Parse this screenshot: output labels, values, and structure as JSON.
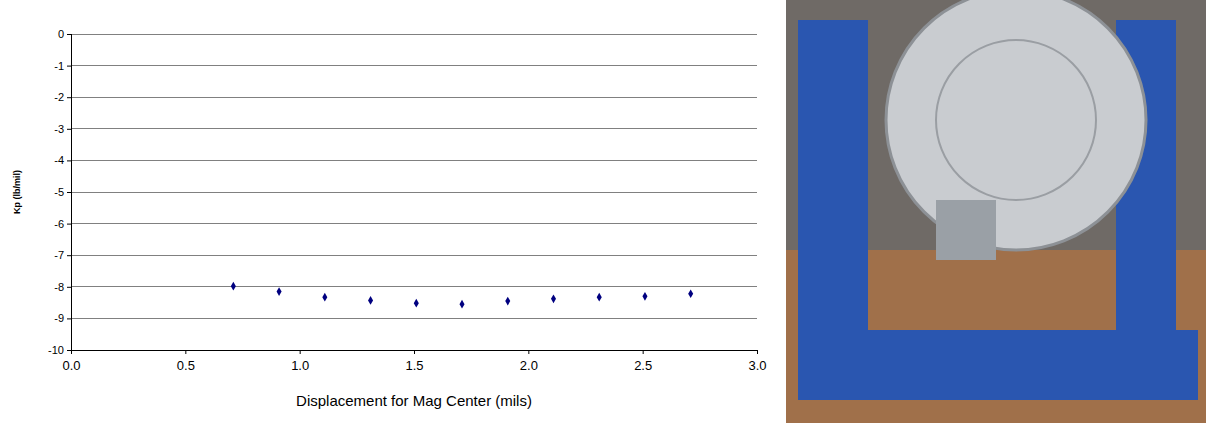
{
  "chart_data": {
    "type": "scatter",
    "x_label": "Displacement for Mag Center (mils)",
    "y_label": "Kp (lb/mil)",
    "x": [
      0.71,
      0.91,
      1.11,
      1.31,
      1.51,
      1.71,
      1.91,
      2.11,
      2.31,
      2.51,
      2.71
    ],
    "series": [
      {
        "color": "#000080",
        "marker": "diamond",
        "values": [
          -7.98,
          -8.15,
          -8.33,
          -8.43,
          -8.52,
          -8.55,
          -8.45,
          -8.38,
          -8.33,
          -8.3,
          -8.22
        ]
      }
    ],
    "xlim": [
      0,
      3
    ],
    "xticks": [
      {
        "value": 0,
        "label": "0.0"
      },
      0.5,
      {
        "value": 1,
        "label": "1.0"
      },
      1.5,
      {
        "value": 2,
        "label": "2.0"
      },
      2.5,
      {
        "value": 3,
        "label": "3.0"
      }
    ],
    "ylim": [
      -10,
      0
    ],
    "yticks": [
      0,
      -1,
      -2,
      -3,
      -4,
      -5,
      -6,
      -7,
      -8,
      -9,
      -10
    ],
    "grid": true
  }
}
